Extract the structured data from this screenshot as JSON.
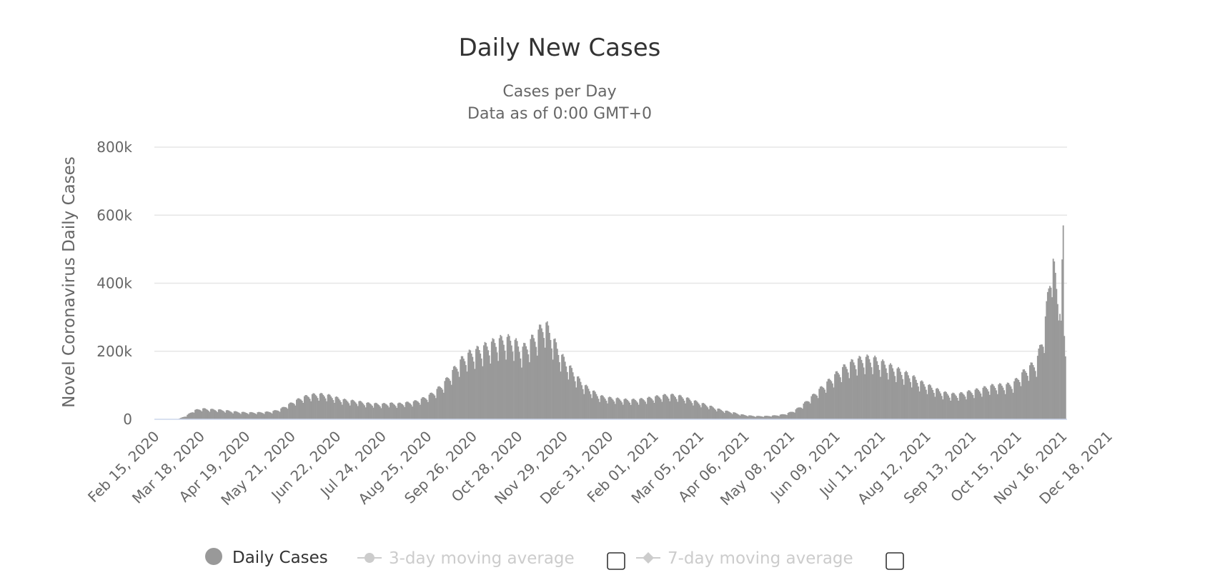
{
  "chart_data": {
    "type": "bar",
    "title": "Daily New Cases",
    "subtitle_lines": [
      "Cases per Day",
      "Data as of 0:00 GMT+0"
    ],
    "ylabel": "Novel Coronavirus Daily Cases",
    "xlabel": "",
    "ylim": [
      0,
      800000
    ],
    "y_ticks": [
      0,
      200000,
      400000,
      600000,
      800000
    ],
    "y_tick_labels": [
      "0",
      "200k",
      "400k",
      "600k",
      "800k"
    ],
    "x_range": [
      "Feb 15, 2020",
      "Jan 03, 2022"
    ],
    "x_tick_labels": [
      "Feb 15, 2020",
      "Mar 18, 2020",
      "Apr 19, 2020",
      "May 21, 2020",
      "Jun 22, 2020",
      "Jul 24, 2020",
      "Aug 25, 2020",
      "Sep 26, 2020",
      "Oct 28, 2020",
      "Nov 29, 2020",
      "Dec 31, 2020",
      "Feb 01, 2021",
      "Mar 05, 2021",
      "Apr 06, 2021",
      "May 08, 2021",
      "Jun 09, 2021",
      "Jul 11, 2021",
      "Aug 12, 2021",
      "Sep 13, 2021",
      "Oct 15, 2021",
      "Nov 16, 2021",
      "Dec 18, 2021"
    ],
    "grid": true,
    "legend_position": "bottom-center",
    "series": [
      {
        "name": "Daily Cases",
        "color": "#999999",
        "values_weekly": [
          200,
          400,
          600,
          1000,
          10000,
          25000,
          30000,
          28000,
          27000,
          25000,
          22000,
          20000,
          19000,
          19000,
          20000,
          22000,
          28000,
          40000,
          52000,
          62000,
          68000,
          70000,
          68000,
          62000,
          55000,
          52000,
          50000,
          45000,
          44000,
          42000,
          45000,
          43000,
          46000,
          48000,
          55000,
          65000,
          80000,
          100000,
          130000,
          160000,
          180000,
          190000,
          200000,
          210000,
          220000,
          225000,
          220000,
          195000,
          215000,
          240000,
          270000,
          225000,
          180000,
          150000,
          120000,
          95000,
          80000,
          65000,
          60000,
          58000,
          55000,
          54000,
          55000,
          58000,
          62000,
          66000,
          68000,
          66000,
          60000,
          52000,
          45000,
          38000,
          30000,
          24000,
          20000,
          14000,
          11000,
          9000,
          9000,
          10000,
          12000,
          16000,
          25000,
          40000,
          60000,
          80000,
          100000,
          120000,
          140000,
          155000,
          165000,
          170000,
          170000,
          160000,
          150000,
          140000,
          130000,
          120000,
          105000,
          95000,
          85000,
          75000,
          70000,
          70000,
          75000,
          80000,
          85000,
          92000,
          95000,
          95000,
          100000,
          125000,
          145000,
          160000,
          250000,
          460000,
          300000
        ]
      }
    ],
    "legend": [
      {
        "label": "Daily Cases",
        "state": "visible",
        "symbol": "circle"
      },
      {
        "label": "3-day moving average",
        "state": "hidden",
        "symbol": "circle-line"
      },
      {
        "label": "7-day moving average",
        "state": "hidden",
        "symbol": "diamond-line"
      }
    ]
  }
}
